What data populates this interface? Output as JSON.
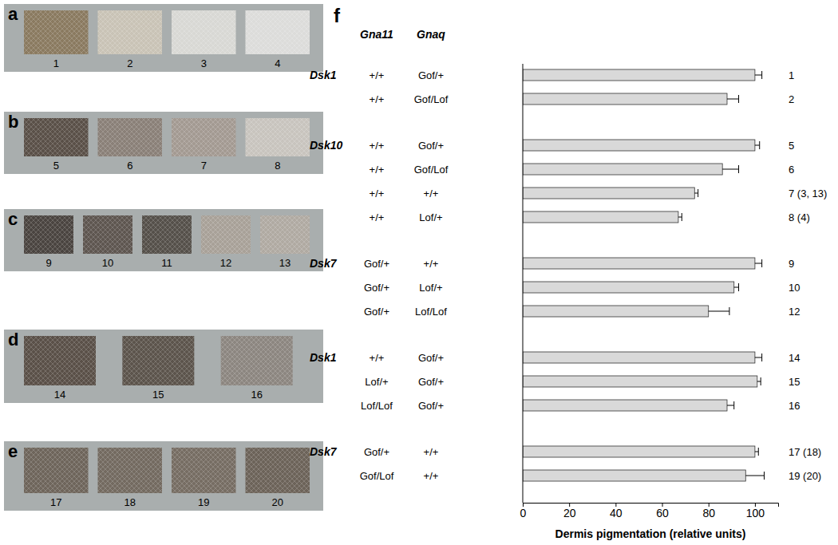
{
  "photo_panels": [
    {
      "label": "a",
      "samples": [
        1,
        2,
        3,
        4
      ]
    },
    {
      "label": "b",
      "samples": [
        5,
        6,
        7,
        8
      ]
    },
    {
      "label": "c",
      "samples": [
        9,
        10,
        11,
        12,
        13
      ]
    },
    {
      "label": "d",
      "samples": [
        14,
        15,
        16
      ]
    },
    {
      "label": "e",
      "samples": [
        17,
        18,
        19,
        20
      ]
    }
  ],
  "chart_data": {
    "type": "bar",
    "orientation": "horizontal",
    "panel_label": "f",
    "column_headers": [
      "Gna11",
      "Gnaq"
    ],
    "categories": [
      "1",
      "2",
      "5",
      "6",
      "7 (3, 13)",
      "8 (4)",
      "9",
      "10",
      "12",
      "14",
      "15",
      "16",
      "17 (18)",
      "19 (20)"
    ],
    "strains": [
      "Dsk1",
      null,
      "Dsk10",
      null,
      null,
      null,
      "Dsk7",
      null,
      null,
      "Dsk1",
      null,
      null,
      "Dsk7",
      null
    ],
    "gna11": [
      "+/+",
      "+/+",
      "+/+",
      "+/+",
      "+/+",
      "+/+",
      "Gof/+",
      "Gof/+",
      "Gof/+",
      "+/+",
      "Lof/+",
      "Lof/Lof",
      "Gof/+",
      "Gof/Lof"
    ],
    "gnaq": [
      "Gof/+",
      "Gof/Lof",
      "Gof/+",
      "Gof/Lof",
      "+/+",
      "Lof/+",
      "+/+",
      "Lof/+",
      "Lof/Lof",
      "Gof/+",
      "Gof/+",
      "Gof/+",
      "+/+",
      "+/+"
    ],
    "values": [
      100,
      88,
      100,
      86,
      74,
      67,
      100,
      91,
      80,
      100,
      101,
      88,
      100,
      96
    ],
    "errors": [
      3,
      5,
      2,
      7,
      1.5,
      1.5,
      3,
      2,
      9,
      3,
      1.5,
      3,
      1.5,
      8
    ],
    "color": "#d9d9d9",
    "xlabel": "Dermis pigmentation (relative units)",
    "xlim": [
      0,
      110
    ],
    "xticks": [
      0,
      20,
      40,
      60,
      80,
      100
    ],
    "grid": false
  }
}
